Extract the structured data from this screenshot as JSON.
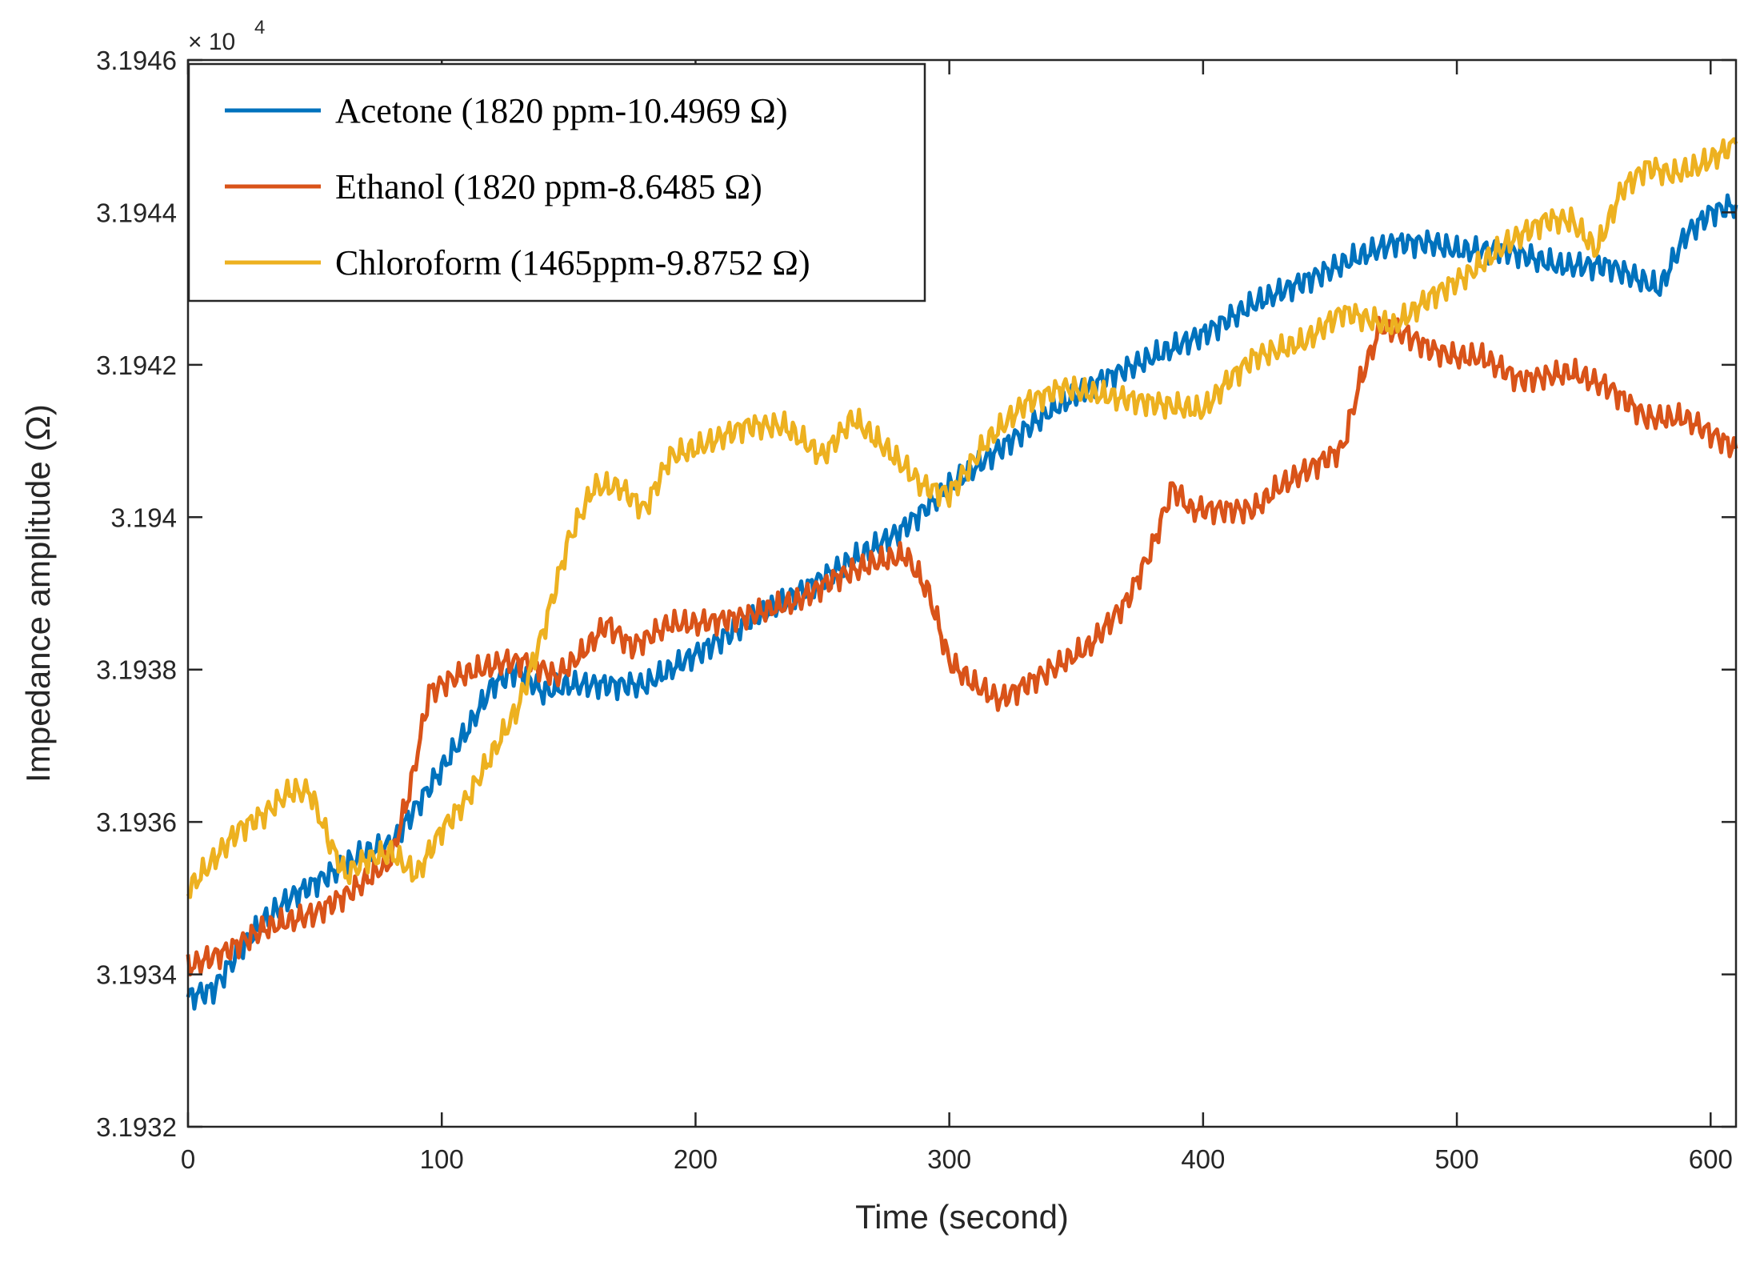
{
  "chart_data": {
    "type": "line",
    "xlabel": "Time (second)",
    "ylabel": "Impedance amplitude (Ω)",
    "multiplier": {
      "base": "× 10",
      "exponent": "4"
    },
    "xlim": [
      0,
      610
    ],
    "ylim": [
      3.1932,
      3.1946
    ],
    "xticks": [
      0,
      100,
      200,
      300,
      400,
      500,
      600
    ],
    "xtick_labels": [
      "0",
      "100",
      "200",
      "300",
      "400",
      "500",
      "600"
    ],
    "yticks": [
      3.1932,
      3.1934,
      3.1936,
      3.1938,
      3.194,
      3.1942,
      3.1944,
      3.1946
    ],
    "ytick_labels": [
      "3.1932",
      "3.1934",
      "3.1936",
      "3.1938",
      "3.194",
      "3.1942",
      "3.1944",
      "3.1946"
    ],
    "legend_position": "top-left",
    "series": [
      {
        "name": "Acetone (1820 ppm-10.4969 Ω)",
        "color": "#0072BD",
        "points": [
          [
            0,
            3.19337
          ],
          [
            10,
            3.19338
          ],
          [
            20,
            3.19343
          ],
          [
            30,
            3.19347
          ],
          [
            40,
            3.1935
          ],
          [
            50,
            3.19352
          ],
          [
            60,
            3.19354
          ],
          [
            70,
            3.19356
          ],
          [
            80,
            3.19357
          ],
          [
            90,
            3.19362
          ],
          [
            100,
            3.19367
          ],
          [
            110,
            3.19372
          ],
          [
            120,
            3.19378
          ],
          [
            130,
            3.1938
          ],
          [
            140,
            3.19377
          ],
          [
            150,
            3.19378
          ],
          [
            160,
            3.19378
          ],
          [
            170,
            3.19378
          ],
          [
            180,
            3.19378
          ],
          [
            190,
            3.1938
          ],
          [
            200,
            3.19382
          ],
          [
            220,
            3.19386
          ],
          [
            240,
            3.1939
          ],
          [
            260,
            3.19394
          ],
          [
            280,
            3.19398
          ],
          [
            300,
            3.19404
          ],
          [
            320,
            3.19409
          ],
          [
            340,
            3.19414
          ],
          [
            360,
            3.19418
          ],
          [
            380,
            3.19421
          ],
          [
            400,
            3.19424
          ],
          [
            420,
            3.19428
          ],
          [
            440,
            3.19431
          ],
          [
            460,
            3.19434
          ],
          [
            475,
            3.19436
          ],
          [
            490,
            3.19436
          ],
          [
            500,
            3.19435
          ],
          [
            520,
            3.19435
          ],
          [
            540,
            3.19433
          ],
          [
            560,
            3.19433
          ],
          [
            580,
            3.1943
          ],
          [
            590,
            3.19437
          ],
          [
            600,
            3.1944
          ],
          [
            610,
            3.19441
          ]
        ]
      },
      {
        "name": "Ethanol (1820 ppm-8.6485 Ω)",
        "color": "#D95319",
        "points": [
          [
            0,
            3.19341
          ],
          [
            15,
            3.19343
          ],
          [
            30,
            3.19346
          ],
          [
            50,
            3.19348
          ],
          [
            65,
            3.19351
          ],
          [
            80,
            3.19355
          ],
          [
            88,
            3.19365
          ],
          [
            95,
            3.19377
          ],
          [
            105,
            3.19379
          ],
          [
            115,
            3.1938
          ],
          [
            125,
            3.19381
          ],
          [
            135,
            3.19381
          ],
          [
            145,
            3.19379
          ],
          [
            155,
            3.19382
          ],
          [
            165,
            3.19386
          ],
          [
            175,
            3.19383
          ],
          [
            190,
            3.19386
          ],
          [
            200,
            3.19386
          ],
          [
            220,
            3.19387
          ],
          [
            240,
            3.19389
          ],
          [
            255,
            3.19392
          ],
          [
            270,
            3.19394
          ],
          [
            283,
            3.19395
          ],
          [
            292,
            3.1939
          ],
          [
            300,
            3.19381
          ],
          [
            310,
            3.19378
          ],
          [
            320,
            3.19376
          ],
          [
            330,
            3.19378
          ],
          [
            340,
            3.1938
          ],
          [
            355,
            3.19383
          ],
          [
            370,
            3.19389
          ],
          [
            380,
            3.19396
          ],
          [
            388,
            3.19404
          ],
          [
            395,
            3.19401
          ],
          [
            405,
            3.19401
          ],
          [
            420,
            3.19401
          ],
          [
            430,
            3.19404
          ],
          [
            440,
            3.19406
          ],
          [
            455,
            3.19409
          ],
          [
            462,
            3.19418
          ],
          [
            470,
            3.19425
          ],
          [
            480,
            3.19424
          ],
          [
            490,
            3.19422
          ],
          [
            500,
            3.19421
          ],
          [
            510,
            3.19421
          ],
          [
            525,
            3.19418
          ],
          [
            545,
            3.19419
          ],
          [
            560,
            3.19417
          ],
          [
            575,
            3.19413
          ],
          [
            590,
            3.19413
          ],
          [
            600,
            3.19411
          ],
          [
            610,
            3.19409
          ]
        ]
      },
      {
        "name": "Chloroform (1465ppm-9.8752 Ω)",
        "color": "#EDB120",
        "points": [
          [
            0,
            3.19351
          ],
          [
            10,
            3.19355
          ],
          [
            20,
            3.19359
          ],
          [
            30,
            3.19361
          ],
          [
            40,
            3.19364
          ],
          [
            48,
            3.19364
          ],
          [
            55,
            3.19358
          ],
          [
            62,
            3.19353
          ],
          [
            70,
            3.19355
          ],
          [
            80,
            3.19356
          ],
          [
            90,
            3.19353
          ],
          [
            100,
            3.19359
          ],
          [
            110,
            3.19363
          ],
          [
            120,
            3.19369
          ],
          [
            130,
            3.19375
          ],
          [
            140,
            3.19385
          ],
          [
            150,
            3.19397
          ],
          [
            160,
            3.19404
          ],
          [
            170,
            3.19404
          ],
          [
            180,
            3.19401
          ],
          [
            190,
            3.19408
          ],
          [
            200,
            3.19409
          ],
          [
            220,
            3.19412
          ],
          [
            235,
            3.19412
          ],
          [
            250,
            3.19408
          ],
          [
            262,
            3.19413
          ],
          [
            275,
            3.19409
          ],
          [
            290,
            3.19404
          ],
          [
            300,
            3.19403
          ],
          [
            315,
            3.1941
          ],
          [
            330,
            3.19415
          ],
          [
            345,
            3.19417
          ],
          [
            360,
            3.19416
          ],
          [
            380,
            3.19415
          ],
          [
            400,
            3.19414
          ],
          [
            410,
            3.19418
          ],
          [
            420,
            3.19421
          ],
          [
            440,
            3.19423
          ],
          [
            455,
            3.19427
          ],
          [
            475,
            3.19425
          ],
          [
            490,
            3.19429
          ],
          [
            505,
            3.19432
          ],
          [
            520,
            3.19436
          ],
          [
            535,
            3.19439
          ],
          [
            545,
            3.19439
          ],
          [
            555,
            3.19435
          ],
          [
            565,
            3.19443
          ],
          [
            575,
            3.19446
          ],
          [
            585,
            3.19445
          ],
          [
            595,
            3.19446
          ],
          [
            605,
            3.19448
          ],
          [
            610,
            3.19449
          ]
        ]
      }
    ]
  }
}
